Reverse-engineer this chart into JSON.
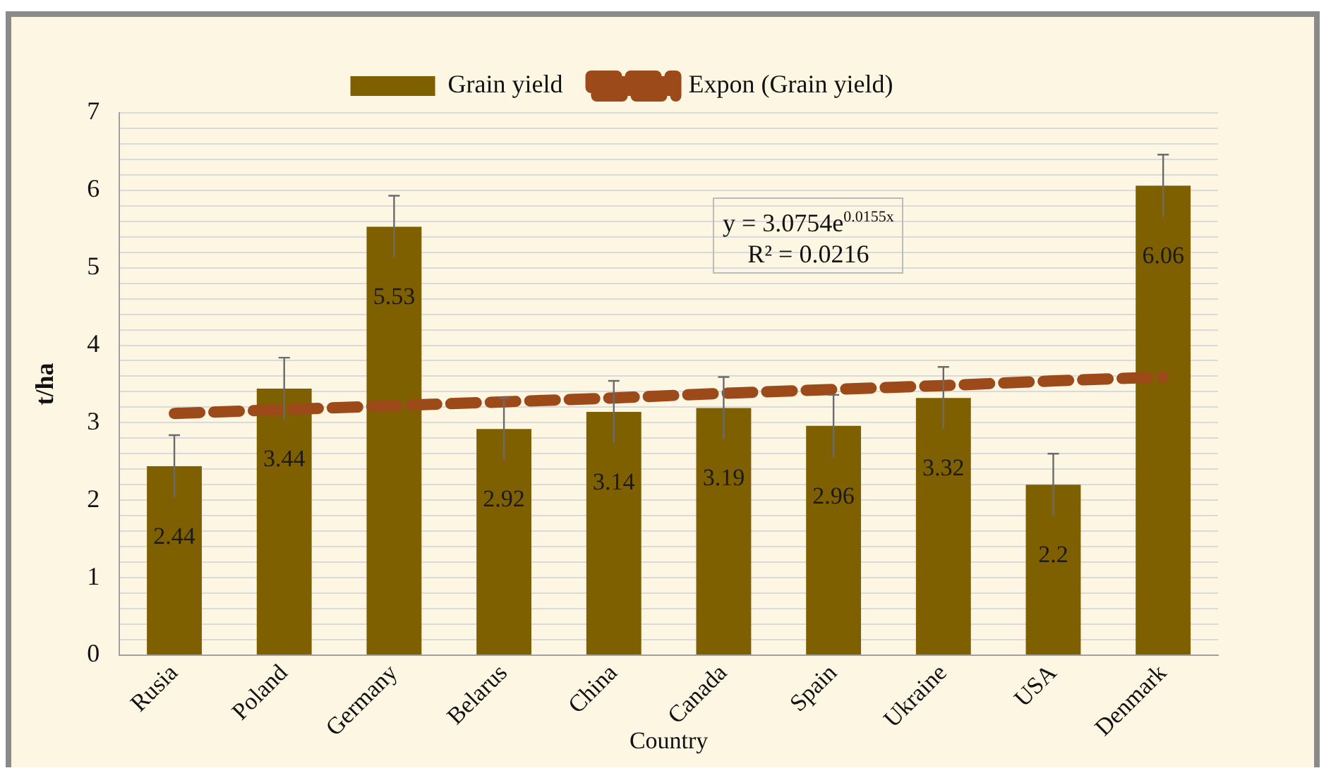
{
  "chart_data": {
    "type": "bar",
    "xlabel": "Country",
    "ylabel": "t/ha",
    "categories": [
      "Rusia",
      "Poland",
      "Germany",
      "Belarus",
      "China",
      "Canada",
      "Spain",
      "Ukraine",
      "USA",
      "Denmark"
    ],
    "series": [
      {
        "name": "Grain yield",
        "color": "#7f6000",
        "values": [
          2.44,
          3.44,
          5.53,
          2.92,
          3.14,
          3.19,
          2.96,
          3.32,
          2.2,
          6.06
        ],
        "errors": [
          0.4,
          0.4,
          0.4,
          0.4,
          0.4,
          0.4,
          0.4,
          0.4,
          0.4,
          0.4
        ],
        "value_labels": [
          "2.44",
          "3.44",
          "5.53",
          "2.92",
          "3.14",
          "3.19",
          "2.96",
          "3.32",
          "2.2",
          "6.06"
        ]
      },
      {
        "name": "Expon (Grain yield)",
        "type": "line",
        "color": "#9c4a1a",
        "line_style": "dashed",
        "marker": "none",
        "values": [
          3.12,
          3.17,
          3.22,
          3.27,
          3.32,
          3.38,
          3.43,
          3.48,
          3.54,
          3.59
        ]
      }
    ],
    "ylim": [
      0,
      7
    ],
    "yticks": [
      0,
      {
        "value": 0.2,
        "label": null
      },
      {
        "value": 0.4,
        "label": null
      },
      {
        "value": 0.6,
        "label": null
      },
      {
        "value": 0.8,
        "label": null
      },
      1,
      {
        "value": 1.2,
        "label": null
      },
      {
        "value": 1.4,
        "label": null
      },
      {
        "value": 1.6,
        "label": null
      },
      {
        "value": 1.8,
        "label": null
      },
      2,
      {
        "value": 2.2,
        "label": null
      },
      {
        "value": 2.4,
        "label": null
      },
      {
        "value": 2.6,
        "label": null
      },
      {
        "value": 2.8,
        "label": null
      },
      3,
      {
        "value": 3.2,
        "label": null
      },
      {
        "value": 3.4,
        "label": null
      },
      {
        "value": 3.6,
        "label": null
      },
      {
        "value": 3.8,
        "label": null
      },
      4,
      {
        "value": 4.2,
        "label": null
      },
      {
        "value": 4.4,
        "label": null
      },
      {
        "value": 4.6,
        "label": null
      },
      {
        "value": 4.8,
        "label": null
      },
      5,
      {
        "value": 5.2,
        "label": null
      },
      {
        "value": 5.4,
        "label": null
      },
      {
        "value": 5.6,
        "label": null
      },
      {
        "value": 5.8,
        "label": null
      },
      6,
      {
        "value": 6.2,
        "label": null
      },
      {
        "value": 6.4,
        "label": null
      },
      {
        "value": 6.6,
        "label": null
      },
      {
        "value": 6.8,
        "label": null
      },
      7
    ],
    "grid": "y",
    "legend": "top",
    "annotations": [
      "y = 3.0754e$^{0.0155x}$",
      "R² = 0.0216"
    ]
  }
}
